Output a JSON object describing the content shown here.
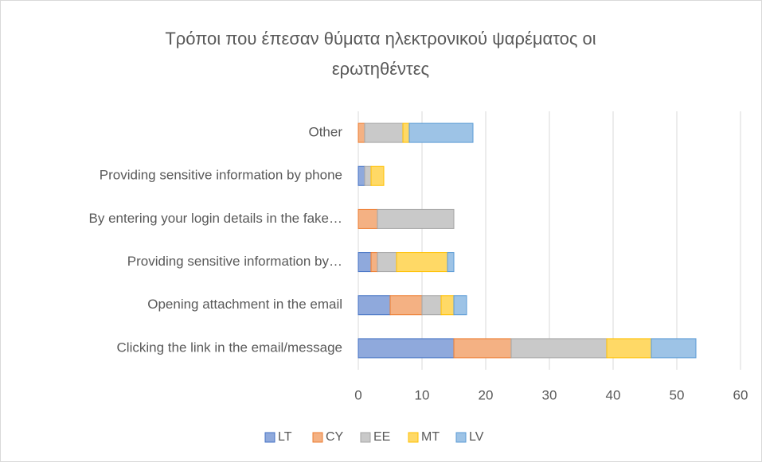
{
  "chart_data": {
    "type": "stacked_barh",
    "title": [
      "Τρόποι που έπεσαν θύματα ηλεκτρονικού ψαρέματος οι",
      "ερωτηθέντες"
    ],
    "categories": [
      "Clicking the link in the email/message",
      "Opening attachment in the email",
      "Providing sensitive information by…",
      "By entering your login details in the fake…",
      "Providing sensitive information by phone",
      "Other"
    ],
    "series": [
      {
        "name": "LT",
        "color": "#8fa9dc",
        "border_color": "#4472c4",
        "values": [
          15,
          5,
          2,
          0,
          1,
          0
        ]
      },
      {
        "name": "CY",
        "color": "#f4b183",
        "border_color": "#ed7d31",
        "values": [
          9,
          5,
          1,
          3,
          0,
          1
        ]
      },
      {
        "name": "EE",
        "color": "#c9c9c9",
        "border_color": "#a5a5a5",
        "values": [
          15,
          3,
          3,
          12,
          1,
          6
        ]
      },
      {
        "name": "MT",
        "color": "#ffd966",
        "border_color": "#ffc000",
        "values": [
          7,
          2,
          8,
          0,
          2,
          1
        ]
      },
      {
        "name": "LV",
        "color": "#9dc3e6",
        "border_color": "#5b9bd5",
        "values": [
          7,
          2,
          1,
          0,
          0,
          10
        ]
      }
    ],
    "xlim": [
      0,
      60
    ],
    "xticks": [
      0,
      10,
      20,
      30,
      40,
      50,
      60
    ],
    "grid": true,
    "legend": "bottom"
  }
}
